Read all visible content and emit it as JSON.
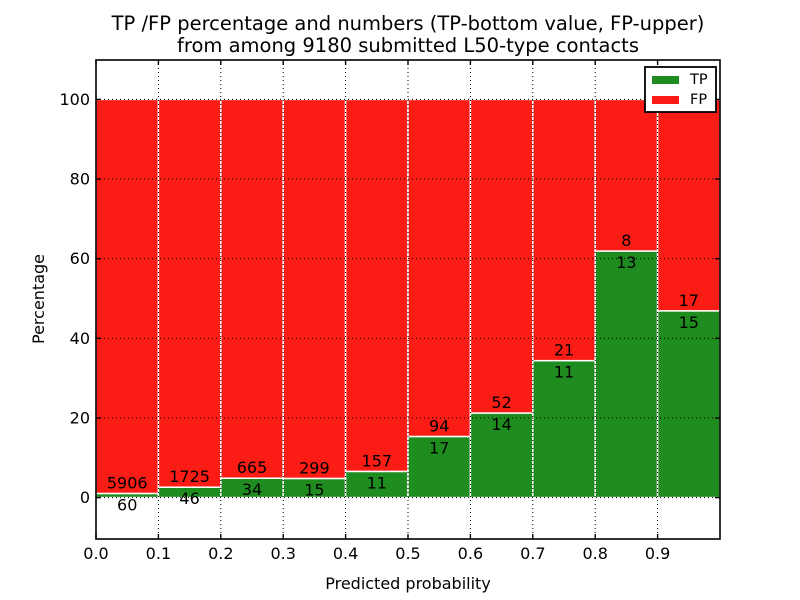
{
  "chart_data": {
    "type": "bar",
    "stacked": true,
    "title": "TP /FP percentage and numbers (TP-bottom value, FP-upper)",
    "subtitle": "from among 9180 submitted L50-type contacts",
    "xlabel": "Predicted probability",
    "ylabel": "Percentage",
    "total_contacts": 9180,
    "xlim": [
      0,
      1
    ],
    "ylim": [
      -10.4,
      109.9
    ],
    "xticks": [
      "0.0",
      "0.1",
      "0.2",
      "0.3",
      "0.4",
      "0.5",
      "0.6",
      "0.7",
      "0.8",
      "0.9"
    ],
    "yticks": [
      "0",
      "20",
      "40",
      "60",
      "80",
      "100"
    ],
    "grid": "dotted-black-on-top",
    "colors": {
      "tp": "#1e8c1e",
      "fp": "#fb1d15",
      "bar_edge": "#ffffff",
      "background": "#ffffff",
      "grid": "#000000"
    },
    "legend": {
      "position": "upper right",
      "entries": [
        {
          "label": "TP",
          "color": "#1e8c1e"
        },
        {
          "label": "FP",
          "color": "#fb1d15"
        }
      ]
    },
    "bars": [
      {
        "range": "0.0-0.1",
        "x_start": 0.0,
        "x_end": 0.1,
        "tp_count": 60,
        "fp_count": 5906,
        "tp_pct": 1.01,
        "fp_top_pct": 100
      },
      {
        "range": "0.1-0.2",
        "x_start": 0.1,
        "x_end": 0.2,
        "tp_count": 46,
        "fp_count": 1725,
        "tp_pct": 2.6,
        "fp_top_pct": 100
      },
      {
        "range": "0.2-0.3",
        "x_start": 0.2,
        "x_end": 0.3,
        "tp_count": 34,
        "fp_count": 665,
        "tp_pct": 4.86,
        "fp_top_pct": 100
      },
      {
        "range": "0.3-0.4",
        "x_start": 0.3,
        "x_end": 0.4,
        "tp_count": 15,
        "fp_count": 299,
        "tp_pct": 4.78,
        "fp_top_pct": 100
      },
      {
        "range": "0.4-0.5",
        "x_start": 0.4,
        "x_end": 0.5,
        "tp_count": 11,
        "fp_count": 157,
        "tp_pct": 6.55,
        "fp_top_pct": 100
      },
      {
        "range": "0.5-0.6",
        "x_start": 0.5,
        "x_end": 0.6,
        "tp_count": 17,
        "fp_count": 94,
        "tp_pct": 15.32,
        "fp_top_pct": 100
      },
      {
        "range": "0.6-0.7",
        "x_start": 0.6,
        "x_end": 0.7,
        "tp_count": 14,
        "fp_count": 52,
        "tp_pct": 21.21,
        "fp_top_pct": 100
      },
      {
        "range": "0.7-0.8",
        "x_start": 0.7,
        "x_end": 0.8,
        "tp_count": 11,
        "fp_count": 21,
        "tp_pct": 34.38,
        "fp_top_pct": 100
      },
      {
        "range": "0.8-0.9",
        "x_start": 0.8,
        "x_end": 0.9,
        "tp_count": 13,
        "fp_count": 8,
        "tp_pct": 61.9,
        "fp_top_pct": 100
      },
      {
        "range": "0.9-1.0",
        "x_start": 0.9,
        "x_end": 1.0,
        "tp_count": 15,
        "fp_count": 17,
        "tp_pct": 46.88,
        "fp_top_pct": 100
      }
    ]
  }
}
